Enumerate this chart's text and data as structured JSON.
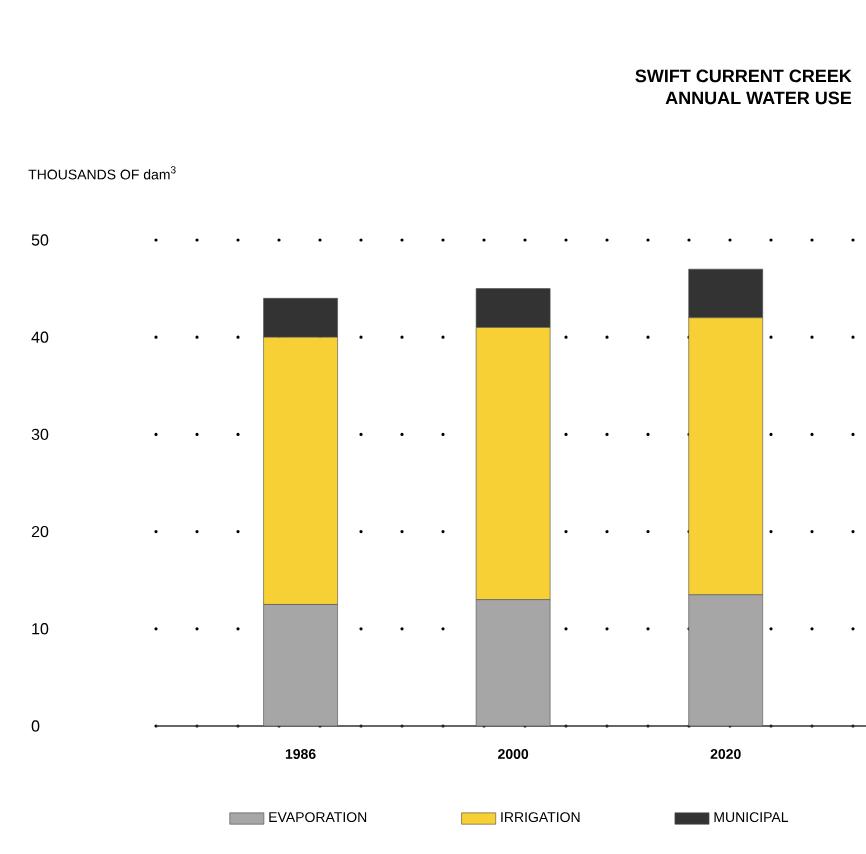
{
  "chart_data": {
    "type": "bar",
    "title": "SWIFT CURRENT CREEK",
    "subtitle": "ANNUAL WATER USE",
    "ylabel": "THOUSANDS OF dam$^{3}$",
    "categories": [
      "1986",
      "2000",
      "2020"
    ],
    "stacked": true,
    "series": [
      {
        "name": "EVAPORATION",
        "color": "#a6a6a6",
        "values": [
          12.5,
          13,
          13.5
        ]
      },
      {
        "name": "IRRIGATION",
        "color": "#f7d035",
        "values": [
          27.5,
          28,
          28.5
        ]
      },
      {
        "name": "MUNICIPAL",
        "color": "#333333",
        "values": [
          4,
          4,
          5
        ]
      }
    ],
    "ylim": [
      0,
      50
    ],
    "yticks": [
      0,
      10,
      20,
      30,
      40,
      50
    ],
    "grid": "y",
    "legend": "bottom"
  }
}
